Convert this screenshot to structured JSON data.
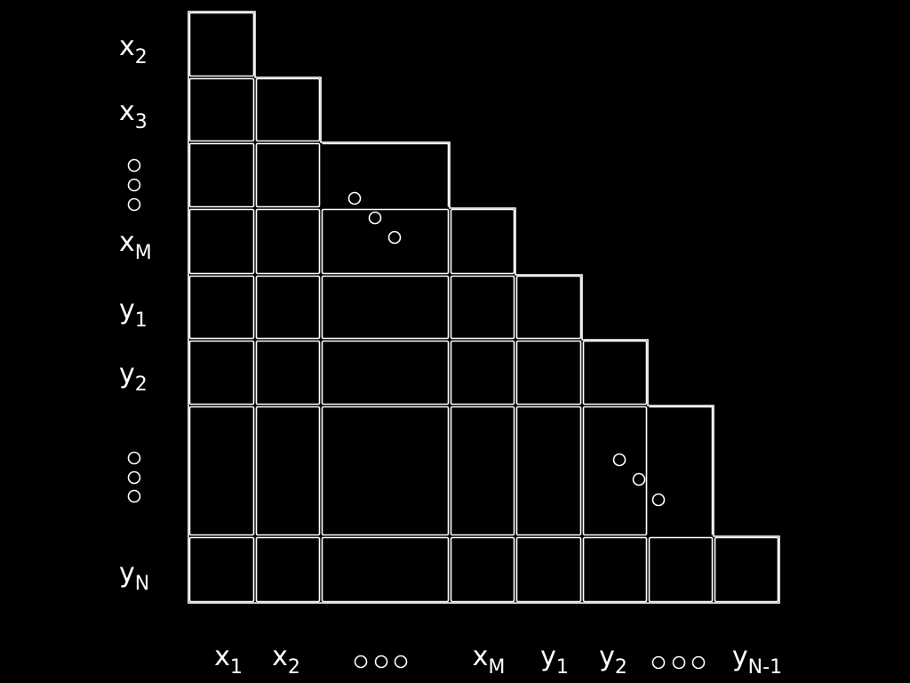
{
  "diagram": {
    "row_labels": [
      {
        "main": "x",
        "sub": "2"
      },
      {
        "main": "x",
        "sub": "3"
      },
      {
        "main": "",
        "sub": ""
      },
      {
        "main": "x",
        "sub": "M"
      },
      {
        "main": "y",
        "sub": "1"
      },
      {
        "main": "y",
        "sub": "2"
      },
      {
        "main": "",
        "sub": ""
      },
      {
        "main": "y",
        "sub": "N"
      }
    ],
    "column_labels": [
      {
        "main": "x",
        "sub": "1"
      },
      {
        "main": "x",
        "sub": "2"
      },
      {
        "main": "",
        "sub": ""
      },
      {
        "main": "x",
        "sub": "M"
      },
      {
        "main": "y",
        "sub": "1"
      },
      {
        "main": "y",
        "sub": "2"
      },
      {
        "main": "",
        "sub": ""
      },
      {
        "main": "y",
        "sub": "N-1"
      }
    ],
    "colors": {
      "background": "#000000",
      "line": "#ffffff",
      "text": "#ffffff"
    }
  }
}
